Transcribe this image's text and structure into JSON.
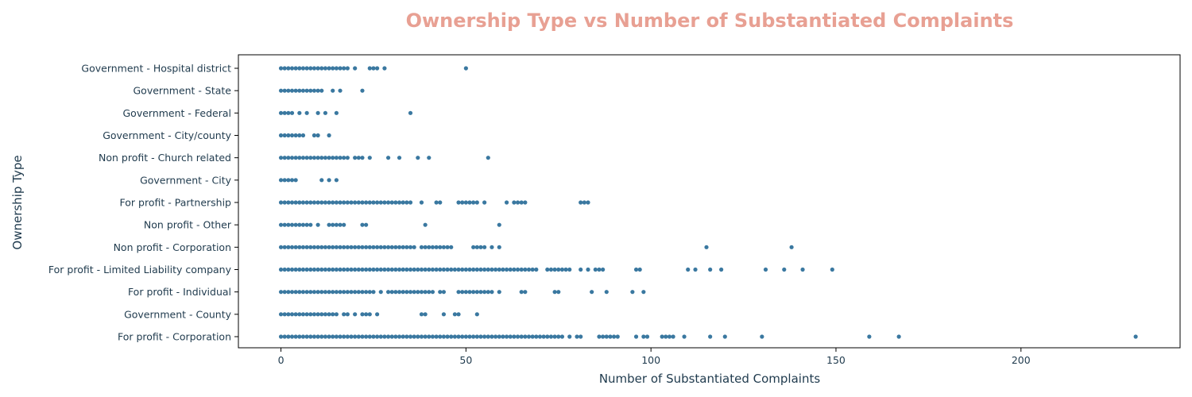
{
  "colors": {
    "title": "#E8A093",
    "text": "#1F3A4D",
    "point": "#3A78A0",
    "axis": "#000000"
  },
  "chart_data": {
    "type": "scatter",
    "title": "Ownership Type vs Number of Substantiated Complaints",
    "xlabel": "Number of Substantiated Complaints",
    "ylabel": "Ownership Type",
    "xlim": [
      -11.5,
      243
    ],
    "xticks": [
      0,
      50,
      100,
      150,
      200
    ],
    "grid": false,
    "categories": [
      "Government - Hospital district",
      "Government - State",
      "Government - Federal",
      "Government - City/county",
      "Non profit - Church related",
      "Government - City",
      "For profit - Partnership",
      "Non profit - Other",
      "Non profit - Corporation",
      "For profit - Limited Liability company",
      "For profit - Individual",
      "Government - County",
      "For profit - Corporation"
    ],
    "series": [
      {
        "category": "Government - Hospital district",
        "x": [
          0,
          1,
          2,
          3,
          4,
          5,
          6,
          7,
          8,
          9,
          10,
          11,
          12,
          13,
          14,
          15,
          16,
          17,
          18,
          20,
          24,
          25,
          26,
          28,
          50
        ]
      },
      {
        "category": "Government - State",
        "x": [
          0,
          1,
          2,
          3,
          4,
          5,
          6,
          7,
          8,
          9,
          10,
          11,
          14,
          16,
          22
        ]
      },
      {
        "category": "Government - Federal",
        "x": [
          0,
          1,
          2,
          3,
          5,
          7,
          10,
          12,
          15,
          35
        ]
      },
      {
        "category": "Government - City/county",
        "x": [
          0,
          1,
          2,
          3,
          4,
          5,
          6,
          9,
          10,
          13
        ]
      },
      {
        "category": "Non profit - Church related",
        "x": [
          0,
          1,
          2,
          3,
          4,
          5,
          6,
          7,
          8,
          9,
          10,
          11,
          12,
          13,
          14,
          15,
          16,
          17,
          18,
          20,
          21,
          22,
          24,
          29,
          32,
          37,
          40,
          56
        ]
      },
      {
        "category": "Government - City",
        "x": [
          0,
          1,
          2,
          3,
          4,
          11,
          13,
          15
        ]
      },
      {
        "category": "For profit - Partnership",
        "x": [
          0,
          1,
          2,
          3,
          4,
          5,
          6,
          7,
          8,
          9,
          10,
          11,
          12,
          13,
          14,
          15,
          16,
          17,
          18,
          19,
          20,
          21,
          22,
          23,
          24,
          25,
          26,
          27,
          28,
          29,
          30,
          31,
          32,
          33,
          34,
          35,
          38,
          42,
          43,
          48,
          49,
          50,
          51,
          52,
          53,
          55,
          61,
          63,
          64,
          65,
          66,
          81,
          82,
          83
        ]
      },
      {
        "category": "Non profit - Other",
        "x": [
          0,
          1,
          2,
          3,
          4,
          5,
          6,
          7,
          8,
          10,
          13,
          14,
          15,
          16,
          17,
          22,
          23,
          39,
          59
        ]
      },
      {
        "category": "Non profit - Corporation",
        "x": [
          0,
          1,
          2,
          3,
          4,
          5,
          6,
          7,
          8,
          9,
          10,
          11,
          12,
          13,
          14,
          15,
          16,
          17,
          18,
          19,
          20,
          21,
          22,
          23,
          24,
          25,
          26,
          27,
          28,
          29,
          30,
          31,
          32,
          33,
          34,
          35,
          36,
          38,
          39,
          40,
          41,
          42,
          43,
          44,
          45,
          46,
          52,
          53,
          54,
          55,
          57,
          59,
          115,
          138
        ]
      },
      {
        "category": "For profit - Limited Liability company",
        "x": [
          0,
          1,
          2,
          3,
          4,
          5,
          6,
          7,
          8,
          9,
          10,
          11,
          12,
          13,
          14,
          15,
          16,
          17,
          18,
          19,
          20,
          21,
          22,
          23,
          24,
          25,
          26,
          27,
          28,
          29,
          30,
          31,
          32,
          33,
          34,
          35,
          36,
          37,
          38,
          39,
          40,
          41,
          42,
          43,
          44,
          45,
          46,
          47,
          48,
          49,
          50,
          51,
          52,
          53,
          54,
          55,
          56,
          57,
          58,
          59,
          60,
          61,
          62,
          63,
          64,
          65,
          66,
          67,
          68,
          69,
          72,
          73,
          74,
          75,
          76,
          77,
          78,
          81,
          83,
          85,
          86,
          87,
          96,
          97,
          110,
          112,
          116,
          119,
          131,
          136,
          141,
          149
        ]
      },
      {
        "category": "For profit - Individual",
        "x": [
          0,
          1,
          2,
          3,
          4,
          5,
          6,
          7,
          8,
          9,
          10,
          11,
          12,
          13,
          14,
          15,
          16,
          17,
          18,
          19,
          20,
          21,
          22,
          23,
          24,
          25,
          27,
          29,
          30,
          31,
          32,
          33,
          34,
          35,
          36,
          37,
          38,
          39,
          40,
          41,
          43,
          44,
          48,
          49,
          50,
          51,
          52,
          53,
          54,
          55,
          56,
          57,
          59,
          65,
          66,
          74,
          75,
          84,
          88,
          95,
          98
        ]
      },
      {
        "category": "Government - County",
        "x": [
          0,
          1,
          2,
          3,
          4,
          5,
          6,
          7,
          8,
          9,
          10,
          11,
          12,
          13,
          14,
          15,
          17,
          18,
          20,
          22,
          23,
          24,
          26,
          38,
          39,
          44,
          47,
          48,
          53
        ]
      },
      {
        "category": "For profit - Corporation",
        "x": [
          0,
          1,
          2,
          3,
          4,
          5,
          6,
          7,
          8,
          9,
          10,
          11,
          12,
          13,
          14,
          15,
          16,
          17,
          18,
          19,
          20,
          21,
          22,
          23,
          24,
          25,
          26,
          27,
          28,
          29,
          30,
          31,
          32,
          33,
          34,
          35,
          36,
          37,
          38,
          39,
          40,
          41,
          42,
          43,
          44,
          45,
          46,
          47,
          48,
          49,
          50,
          51,
          52,
          53,
          54,
          55,
          56,
          57,
          58,
          59,
          60,
          61,
          62,
          63,
          64,
          65,
          66,
          67,
          68,
          69,
          70,
          71,
          72,
          73,
          74,
          75,
          76,
          78,
          80,
          81,
          86,
          87,
          88,
          89,
          90,
          91,
          96,
          98,
          99,
          103,
          104,
          105,
          106,
          109,
          116,
          120,
          130,
          159,
          167,
          231
        ]
      }
    ]
  }
}
